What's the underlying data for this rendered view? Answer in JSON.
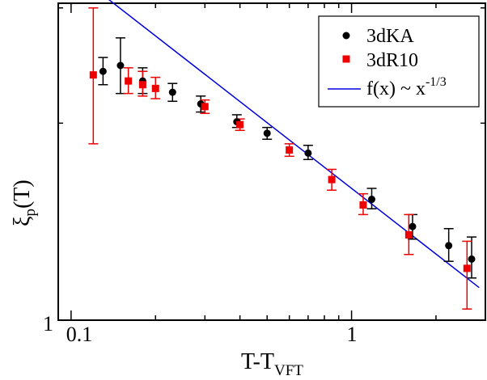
{
  "chart_data": {
    "type": "scatter",
    "x_scale": "log",
    "y_scale": "log",
    "xlim": [
      0.09,
      3.0
    ],
    "ylim": [
      1.0,
      3.05
    ],
    "x_ticks": [
      0.1,
      1
    ],
    "x_tick_labels": [
      "0.1",
      "1"
    ],
    "y_ticks": [
      1
    ],
    "y_tick_labels": [
      "1"
    ],
    "xlabel": "T-T",
    "xlabel_sub": "VFT",
    "ylabel": "ξ",
    "ylabel_sub": "p",
    "ylabel_suffix": "(T)",
    "legend_position": "top-right",
    "grid": false,
    "series": [
      {
        "name": "3dKA",
        "marker": "circle",
        "color": "#000000",
        "points": [
          {
            "x": 0.13,
            "y": 2.4,
            "ylo": 2.29,
            "yhi": 2.52
          },
          {
            "x": 0.15,
            "y": 2.45,
            "ylo": 2.22,
            "yhi": 2.7
          },
          {
            "x": 0.18,
            "y": 2.32,
            "ylo": 2.22,
            "yhi": 2.43
          },
          {
            "x": 0.23,
            "y": 2.23,
            "ylo": 2.16,
            "yhi": 2.3
          },
          {
            "x": 0.29,
            "y": 2.14,
            "ylo": 2.08,
            "yhi": 2.2
          },
          {
            "x": 0.39,
            "y": 2.01,
            "ylo": 1.97,
            "yhi": 2.06
          },
          {
            "x": 0.5,
            "y": 1.93,
            "ylo": 1.89,
            "yhi": 1.97
          },
          {
            "x": 0.7,
            "y": 1.8,
            "ylo": 1.76,
            "yhi": 1.85
          },
          {
            "x": 1.18,
            "y": 1.53,
            "ylo": 1.48,
            "yhi": 1.59
          },
          {
            "x": 1.65,
            "y": 1.39,
            "ylo": 1.33,
            "yhi": 1.45
          },
          {
            "x": 2.22,
            "y": 1.3,
            "ylo": 1.23,
            "yhi": 1.38
          },
          {
            "x": 2.68,
            "y": 1.24,
            "ylo": 1.16,
            "yhi": 1.34
          }
        ]
      },
      {
        "name": "3dR10",
        "marker": "square",
        "color": "#ee0000",
        "points": [
          {
            "x": 0.12,
            "y": 2.37,
            "ylo": 1.86,
            "yhi": 3.0
          },
          {
            "x": 0.16,
            "y": 2.32,
            "ylo": 2.22,
            "yhi": 2.43
          },
          {
            "x": 0.18,
            "y": 2.29,
            "ylo": 2.2,
            "yhi": 2.4
          },
          {
            "x": 0.2,
            "y": 2.26,
            "ylo": 2.18,
            "yhi": 2.35
          },
          {
            "x": 0.3,
            "y": 2.12,
            "ylo": 2.07,
            "yhi": 2.17
          },
          {
            "x": 0.4,
            "y": 1.99,
            "ylo": 1.95,
            "yhi": 2.03
          },
          {
            "x": 0.6,
            "y": 1.82,
            "ylo": 1.78,
            "yhi": 1.86
          },
          {
            "x": 0.85,
            "y": 1.64,
            "ylo": 1.58,
            "yhi": 1.7
          },
          {
            "x": 1.1,
            "y": 1.5,
            "ylo": 1.45,
            "yhi": 1.56
          },
          {
            "x": 1.6,
            "y": 1.35,
            "ylo": 1.26,
            "yhi": 1.45
          },
          {
            "x": 2.58,
            "y": 1.2,
            "ylo": 1.04,
            "yhi": 1.32
          }
        ]
      }
    ],
    "fit": {
      "name": "f(x) ~ x",
      "name_exponent": "-1/3",
      "color": "#0000dd",
      "x_range": [
        0.125,
        2.85
      ],
      "anchor_x": 1.0,
      "anchor_y": 1.59,
      "exponent": -0.3333
    },
    "legend_entries": [
      {
        "label": "3dKA",
        "marker": "circle",
        "color": "#000000"
      },
      {
        "label": "3dR10",
        "marker": "square",
        "color": "#ee0000"
      },
      {
        "label": "f(x) ~ x",
        "superscript": "-1/3",
        "marker": "line",
        "color": "#0000dd"
      }
    ]
  }
}
